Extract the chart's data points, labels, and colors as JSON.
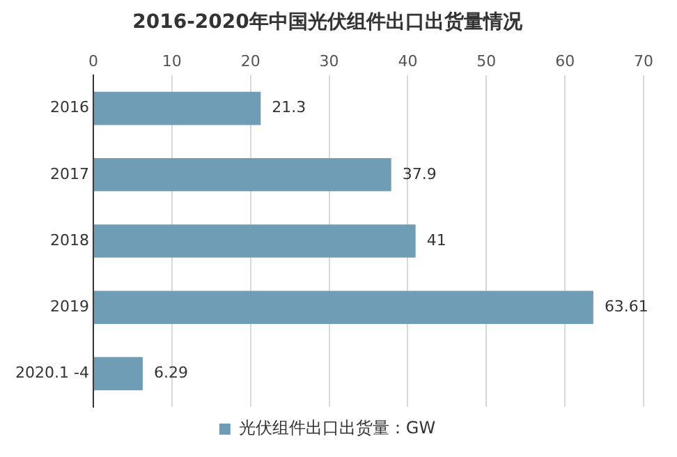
{
  "chart_data": {
    "type": "bar",
    "title": "2016-2020年中国光伏组件出口出货量情况",
    "orientation": "horizontal",
    "categories": [
      "2016",
      "2017",
      "2018",
      "2019",
      "2020.1 -4"
    ],
    "series": [
      {
        "name": "光伏组件出口出货量：GW",
        "color": "#6f9db5",
        "values": [
          21.3,
          37.9,
          41,
          63.61,
          6.29
        ]
      }
    ],
    "xlim": [
      0,
      70
    ],
    "xticks": [
      0,
      10,
      20,
      30,
      40,
      50,
      60,
      70
    ],
    "grid": "x",
    "legend": "bottom",
    "data_labels": true
  }
}
